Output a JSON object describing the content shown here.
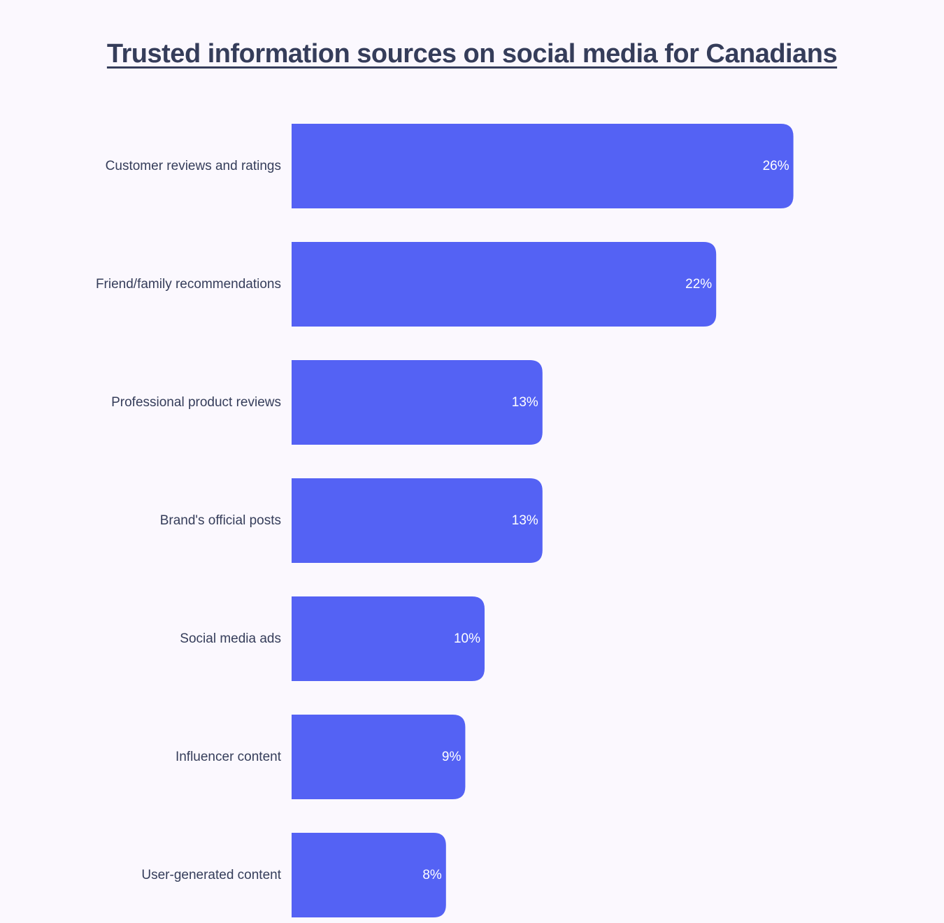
{
  "chart_data": {
    "type": "bar",
    "orientation": "horizontal",
    "title": "Trusted information sources on social media for Canadians",
    "categories": [
      "Customer reviews and ratings",
      "Friend/family recommendations",
      "Professional product reviews",
      "Brand's official posts",
      "Social media ads",
      "Influencer content",
      "User-generated content"
    ],
    "values": [
      26,
      22,
      13,
      13,
      10,
      9,
      8
    ],
    "value_labels": [
      "26%",
      "22%",
      "13%",
      "13%",
      "10%",
      "9%",
      "8%"
    ],
    "unit": "%",
    "grid": false,
    "legend": "none",
    "bar_color": "#5462f4"
  },
  "colors": {
    "background": "#fbf8fe",
    "text": "#353d5a",
    "bar": "#5462f4",
    "value_text": "#ffffff"
  }
}
